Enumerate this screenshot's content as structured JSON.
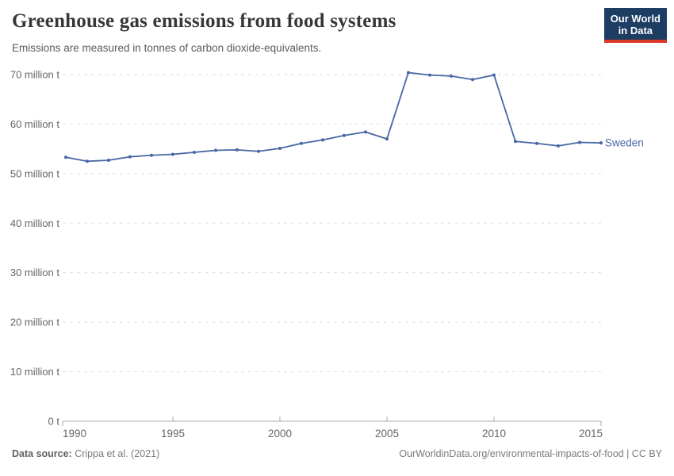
{
  "header": {
    "title": "Greenhouse gas emissions from food systems",
    "subtitle": "Emissions are measured in tonnes of carbon dioxide-equivalents."
  },
  "logo": {
    "line1": "Our World",
    "line2": "in Data"
  },
  "chart_data": {
    "type": "line",
    "title": "Greenhouse gas emissions from food systems",
    "subtitle": "Emissions are measured in tonnes of carbon dioxide-equivalents.",
    "xlabel": "",
    "ylabel": "",
    "xlim": [
      1990,
      2015
    ],
    "ylim": [
      0,
      70
    ],
    "grid": "horizontal-dashed",
    "legend_position": "end-of-line",
    "x": [
      1990,
      1991,
      1992,
      1993,
      1994,
      1995,
      1996,
      1997,
      1998,
      1999,
      2000,
      2001,
      2002,
      2003,
      2004,
      2005,
      2006,
      2007,
      2008,
      2009,
      2010,
      2011,
      2012,
      2013,
      2014,
      2015
    ],
    "series": [
      {
        "name": "Sweden",
        "color": "#4666a4",
        "values": [
          53.3,
          52.5,
          52.7,
          53.4,
          53.7,
          53.9,
          54.3,
          54.7,
          54.8,
          54.5,
          55.1,
          56.1,
          56.8,
          57.7,
          58.4,
          57.0,
          70.4,
          69.9,
          69.7,
          69.0,
          69.9,
          56.5,
          56.1,
          55.6,
          56.3,
          56.2
        ]
      }
    ],
    "x_ticks": [
      1990,
      1995,
      2000,
      2005,
      2010,
      2015
    ],
    "y_ticks": [
      {
        "value": 0,
        "label": "0 t"
      },
      {
        "value": 10,
        "label": "10 million t"
      },
      {
        "value": 20,
        "label": "20 million t"
      },
      {
        "value": 30,
        "label": "30 million t"
      },
      {
        "value": 40,
        "label": "40 million t"
      },
      {
        "value": 50,
        "label": "50 million t"
      },
      {
        "value": 60,
        "label": "60 million t"
      },
      {
        "value": 70,
        "label": "70 million t"
      }
    ]
  },
  "colors": {
    "line": "#4666a4",
    "gridline": "#dedede",
    "axis": "#a8a8a8",
    "tick_text": "#666666",
    "logo_bg": "#1d3d63",
    "logo_red": "#dc3726"
  },
  "footer": {
    "source_label": "Data source:",
    "source_value": "Crippa et al. (2021)",
    "right_text": "OurWorldinData.org/environmental-impacts-of-food | CC BY"
  }
}
